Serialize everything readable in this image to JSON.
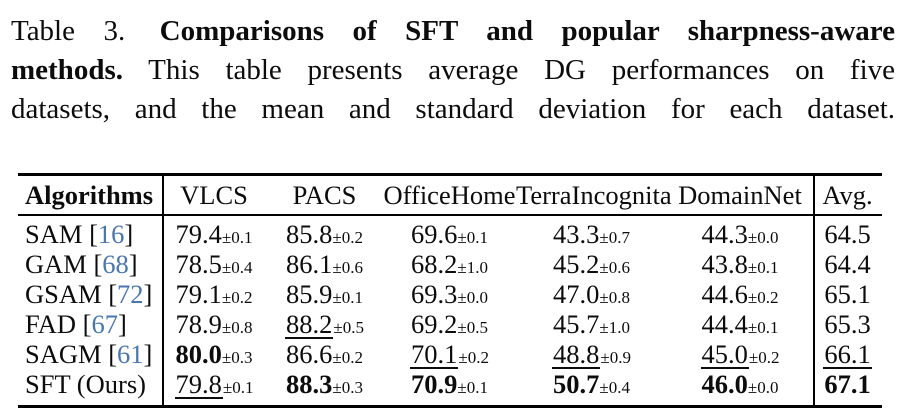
{
  "caption": {
    "label": "Table 3.",
    "line1_bold": "Comparisons of SFT and popular sharpness-aware",
    "line2_bold": "methods.",
    "line2_text": "This table presents average DG performances on five",
    "line3_text": "datasets, and the mean and standard deviation for each dataset."
  },
  "colors": {
    "citation": "#4677b4",
    "text": "#0c0c0c",
    "rule": "#000000"
  },
  "table": {
    "columns": [
      "Algorithms",
      "VLCS",
      "PACS",
      "OfficeHome",
      "TerraIncognita",
      "DomainNet",
      "Avg."
    ],
    "pm": "±",
    "cite_brackets": {
      "open": " [",
      "close": "]"
    },
    "rows": [
      {
        "label": "SAM",
        "cite": "16",
        "cells": [
          {
            "mean": "79.4",
            "std": "0.1"
          },
          {
            "mean": "85.8",
            "std": "0.2"
          },
          {
            "mean": "69.6",
            "std": "0.1"
          },
          {
            "mean": "43.3",
            "std": "0.7"
          },
          {
            "mean": "44.3",
            "std": "0.0"
          }
        ],
        "avg": {
          "mean": "64.5"
        }
      },
      {
        "label": "GAM",
        "cite": "68",
        "cells": [
          {
            "mean": "78.5",
            "std": "0.4"
          },
          {
            "mean": "86.1",
            "std": "0.6"
          },
          {
            "mean": "68.2",
            "std": "1.0"
          },
          {
            "mean": "45.2",
            "std": "0.6"
          },
          {
            "mean": "43.8",
            "std": "0.1"
          }
        ],
        "avg": {
          "mean": "64.4"
        }
      },
      {
        "label": "GSAM",
        "cite": "72",
        "cells": [
          {
            "mean": "79.1",
            "std": "0.2"
          },
          {
            "mean": "85.9",
            "std": "0.1"
          },
          {
            "mean": "69.3",
            "std": "0.0"
          },
          {
            "mean": "47.0",
            "std": "0.8"
          },
          {
            "mean": "44.6",
            "std": "0.2"
          }
        ],
        "avg": {
          "mean": "65.1"
        }
      },
      {
        "label": "FAD",
        "cite": "67",
        "cells": [
          {
            "mean": "78.9",
            "std": "0.8"
          },
          {
            "mean": "88.2",
            "std": "0.5",
            "underline": true
          },
          {
            "mean": "69.2",
            "std": "0.5"
          },
          {
            "mean": "45.7",
            "std": "1.0"
          },
          {
            "mean": "44.4",
            "std": "0.1"
          }
        ],
        "avg": {
          "mean": "65.3"
        }
      },
      {
        "label": "SAGM",
        "cite": "61",
        "cells": [
          {
            "mean": "80.0",
            "std": "0.3",
            "bold": true
          },
          {
            "mean": "86.6",
            "std": "0.2"
          },
          {
            "mean": "70.1",
            "std": "0.2",
            "underline": true
          },
          {
            "mean": "48.8",
            "std": "0.9",
            "underline": true
          },
          {
            "mean": "45.0",
            "std": "0.2",
            "underline": true
          }
        ],
        "avg": {
          "mean": "66.1",
          "underline": true
        }
      },
      {
        "label": "SFT (Ours)",
        "cite": "",
        "cells": [
          {
            "mean": "79.8",
            "std": "0.1",
            "underline": true
          },
          {
            "mean": "88.3",
            "std": "0.3",
            "bold": true
          },
          {
            "mean": "70.9",
            "std": "0.1",
            "bold": true
          },
          {
            "mean": "50.7",
            "std": "0.4",
            "bold": true
          },
          {
            "mean": "46.0",
            "std": "0.0",
            "bold": true
          }
        ],
        "avg": {
          "mean": "67.1",
          "bold": true
        }
      }
    ]
  }
}
